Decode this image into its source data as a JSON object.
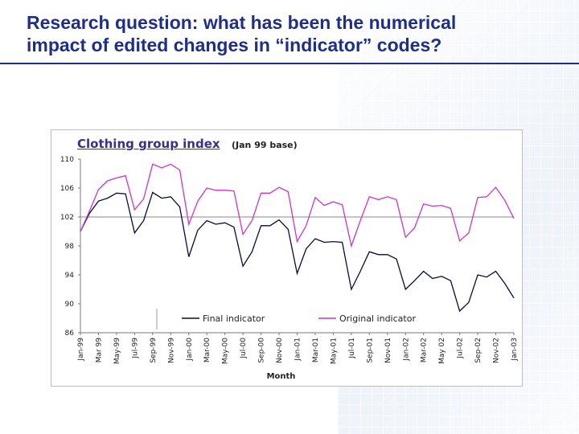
{
  "slide": {
    "title_line1": "Research question: what has been the numerical",
    "title_line2": "impact of edited changes in “indicator” codes?"
  },
  "chart_data": {
    "type": "line",
    "title": "Clothing group index",
    "subtitle": "(Jan 99 base)",
    "xlabel": "Month",
    "ylabel": "",
    "ylim": [
      86,
      110
    ],
    "yticks": [
      86,
      90,
      94,
      98,
      102,
      106,
      110
    ],
    "reference_line": 102,
    "legend_position": "bottom-center",
    "x": [
      "Jan-99",
      "Feb-99",
      "Mar-99",
      "Apr-99",
      "May-99",
      "Jun-99",
      "Jul-99",
      "Aug-99",
      "Sep-99",
      "Oct-99",
      "Nov-99",
      "Dec-99",
      "Jan-00",
      "Feb-00",
      "Mar-00",
      "Apr-00",
      "May-00",
      "Jun-00",
      "Jul-00",
      "Aug-00",
      "Sep-00",
      "Oct-00",
      "Nov-00",
      "Dec-00",
      "Jan-01",
      "Feb-01",
      "Mar-01",
      "Apr-01",
      "May-01",
      "Jun-01",
      "Jul-01",
      "Aug-01",
      "Sep-01",
      "Oct-01",
      "Nov-01",
      "Dec-01",
      "Jan-02",
      "Feb-02",
      "Mar-02",
      "Apr-02",
      "May-02",
      "Jun-02",
      "Jul-02",
      "Aug-02",
      "Sep-02",
      "Oct-02",
      "Nov-02",
      "Dec-02",
      "Jan-03"
    ],
    "xtick_labels": [
      "Jan-99",
      "Mar 99",
      "May-99",
      "Jul-99",
      "Sep-99",
      "Nov-99",
      "Jan-00",
      "Mar-00",
      "May-00",
      "Jul-00",
      "Sep-00",
      "Nov-00",
      "Jan-01",
      "Mar-01",
      "May-01",
      "Jul-01",
      "Sep-01",
      "Nov-01",
      "Jan-02",
      "Mar-02",
      "May 02",
      "Jul-02",
      "Sep-02",
      "Nov-02",
      "Jan-03"
    ],
    "series": [
      {
        "name": "Final indicator",
        "color": "#0a0a3c",
        "values": [
          100,
          102.5,
          104.2,
          104.6,
          105.3,
          105.2,
          99.8,
          101.5,
          105.4,
          104.6,
          104.8,
          103.4,
          96.5,
          100.2,
          101.5,
          101.0,
          101.2,
          100.6,
          95.2,
          97.2,
          100.8,
          100.8,
          101.6,
          100.3,
          94.2,
          97.6,
          99.0,
          98.5,
          98.6,
          98.5,
          92.0,
          94.5,
          97.2,
          96.8,
          96.8,
          96.2,
          92.0,
          93.2,
          94.5,
          93.5,
          93.8,
          93.2,
          89.0,
          90.2,
          94.0,
          93.7,
          94.5,
          92.8,
          90.8
        ]
      },
      {
        "name": "Original indicator",
        "color": "#cc33cc",
        "values": [
          100,
          102.8,
          105.8,
          107.0,
          107.4,
          107.7,
          103.0,
          104.5,
          109.3,
          108.8,
          109.3,
          108.5,
          101.0,
          104.2,
          106.0,
          105.7,
          105.7,
          105.6,
          99.6,
          101.5,
          105.3,
          105.3,
          106.1,
          105.5,
          98.6,
          100.8,
          104.7,
          103.6,
          104.1,
          103.7,
          98.0,
          101.5,
          104.8,
          104.4,
          104.8,
          104.4,
          99.2,
          100.5,
          103.8,
          103.5,
          103.6,
          103.2,
          98.7,
          99.8,
          104.7,
          104.8,
          106.1,
          104.3,
          101.8
        ]
      }
    ]
  }
}
